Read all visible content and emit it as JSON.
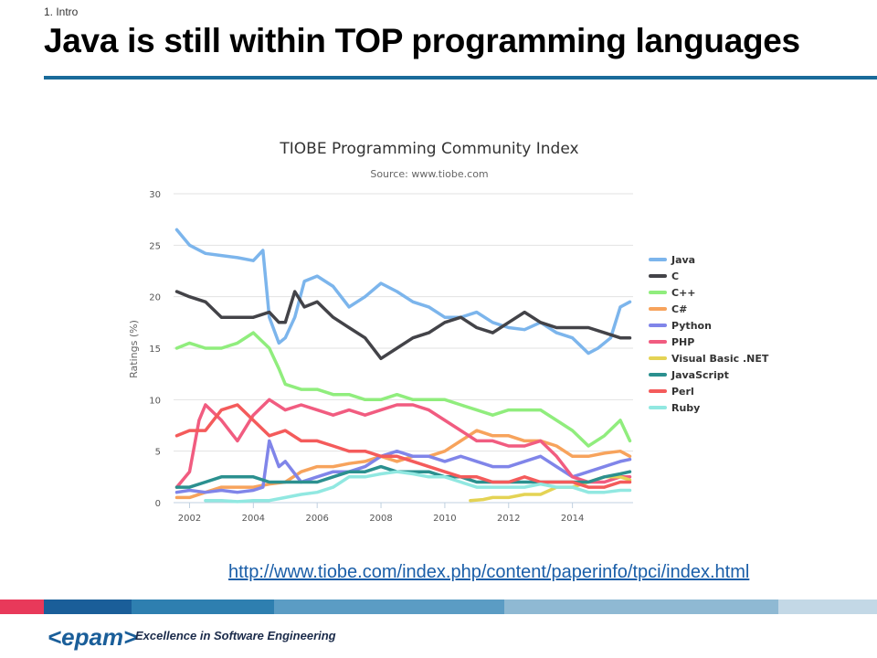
{
  "slide": {
    "section": "1. Intro",
    "title": "Java is still within TOP programming languages",
    "link": "http://www.tiobe.com/index.php/content/paperinfo/tpci/index.html",
    "footer_colors": [
      "#e8395a",
      "#1a5e99",
      "#2e7fb0",
      "#5b9cc4",
      "#8fb9d3",
      "#c3d8e6"
    ],
    "logo": "<epam>",
    "tagline": "Excellence in Software Engineering"
  },
  "chart_data": {
    "type": "line",
    "title": "TIOBE Programming Community Index",
    "subtitle": "Source: www.tiobe.com",
    "xlabel": "",
    "ylabel": "Ratings (%)",
    "xlim": [
      2001.5,
      2015.9
    ],
    "ylim": [
      0,
      30
    ],
    "x_ticks": [
      2002,
      2004,
      2006,
      2008,
      2010,
      2012,
      2014
    ],
    "y_ticks": [
      0,
      5,
      10,
      15,
      20,
      25,
      30
    ],
    "grid": true,
    "legend_position": "right",
    "series": [
      {
        "name": "Java",
        "color": "#7cb5ec",
        "points": [
          [
            2001.6,
            26.5
          ],
          [
            2002.0,
            25.0
          ],
          [
            2002.5,
            24.2
          ],
          [
            2003.0,
            24.0
          ],
          [
            2003.5,
            23.8
          ],
          [
            2004.0,
            23.5
          ],
          [
            2004.3,
            24.5
          ],
          [
            2004.5,
            18.0
          ],
          [
            2004.8,
            15.5
          ],
          [
            2005.0,
            16.0
          ],
          [
            2005.3,
            18.0
          ],
          [
            2005.6,
            21.5
          ],
          [
            2006.0,
            22.0
          ],
          [
            2006.5,
            21.0
          ],
          [
            2007.0,
            19.0
          ],
          [
            2007.5,
            20.0
          ],
          [
            2008.0,
            21.3
          ],
          [
            2008.5,
            20.5
          ],
          [
            2009.0,
            19.5
          ],
          [
            2009.5,
            19.0
          ],
          [
            2010.0,
            18.0
          ],
          [
            2010.5,
            18.0
          ],
          [
            2011.0,
            18.5
          ],
          [
            2011.5,
            17.5
          ],
          [
            2012.0,
            17.0
          ],
          [
            2012.5,
            16.8
          ],
          [
            2013.0,
            17.5
          ],
          [
            2013.5,
            16.5
          ],
          [
            2014.0,
            16.0
          ],
          [
            2014.5,
            14.5
          ],
          [
            2014.8,
            15.0
          ],
          [
            2015.2,
            16.0
          ],
          [
            2015.5,
            19.0
          ],
          [
            2015.8,
            19.5
          ]
        ]
      },
      {
        "name": "C",
        "color": "#434348",
        "points": [
          [
            2001.6,
            20.5
          ],
          [
            2002.0,
            20.0
          ],
          [
            2002.5,
            19.5
          ],
          [
            2003.0,
            18.0
          ],
          [
            2003.5,
            18.0
          ],
          [
            2004.0,
            18.0
          ],
          [
            2004.5,
            18.5
          ],
          [
            2004.8,
            17.5
          ],
          [
            2005.0,
            17.5
          ],
          [
            2005.3,
            20.5
          ],
          [
            2005.6,
            19.0
          ],
          [
            2006.0,
            19.5
          ],
          [
            2006.5,
            18.0
          ],
          [
            2007.0,
            17.0
          ],
          [
            2007.5,
            16.0
          ],
          [
            2008.0,
            14.0
          ],
          [
            2008.5,
            15.0
          ],
          [
            2009.0,
            16.0
          ],
          [
            2009.5,
            16.5
          ],
          [
            2010.0,
            17.5
          ],
          [
            2010.5,
            18.0
          ],
          [
            2011.0,
            17.0
          ],
          [
            2011.5,
            16.5
          ],
          [
            2012.0,
            17.5
          ],
          [
            2012.5,
            18.5
          ],
          [
            2013.0,
            17.5
          ],
          [
            2013.5,
            17.0
          ],
          [
            2014.0,
            17.0
          ],
          [
            2014.5,
            17.0
          ],
          [
            2015.0,
            16.5
          ],
          [
            2015.5,
            16.0
          ],
          [
            2015.8,
            16.0
          ]
        ]
      },
      {
        "name": "C++",
        "color": "#90ed7d",
        "points": [
          [
            2001.6,
            15.0
          ],
          [
            2002.0,
            15.5
          ],
          [
            2002.5,
            15.0
          ],
          [
            2003.0,
            15.0
          ],
          [
            2003.5,
            15.5
          ],
          [
            2004.0,
            16.5
          ],
          [
            2004.5,
            15.0
          ],
          [
            2004.8,
            13.0
          ],
          [
            2005.0,
            11.5
          ],
          [
            2005.5,
            11.0
          ],
          [
            2006.0,
            11.0
          ],
          [
            2006.5,
            10.5
          ],
          [
            2007.0,
            10.5
          ],
          [
            2007.5,
            10.0
          ],
          [
            2008.0,
            10.0
          ],
          [
            2008.5,
            10.5
          ],
          [
            2009.0,
            10.0
          ],
          [
            2009.5,
            10.0
          ],
          [
            2010.0,
            10.0
          ],
          [
            2010.5,
            9.5
          ],
          [
            2011.0,
            9.0
          ],
          [
            2011.5,
            8.5
          ],
          [
            2012.0,
            9.0
          ],
          [
            2012.5,
            9.0
          ],
          [
            2013.0,
            9.0
          ],
          [
            2013.5,
            8.0
          ],
          [
            2014.0,
            7.0
          ],
          [
            2014.5,
            5.5
          ],
          [
            2015.0,
            6.5
          ],
          [
            2015.5,
            8.0
          ],
          [
            2015.8,
            6.0
          ]
        ]
      },
      {
        "name": "C#",
        "color": "#f7a35c",
        "points": [
          [
            2001.6,
            0.5
          ],
          [
            2002.0,
            0.5
          ],
          [
            2002.5,
            1.0
          ],
          [
            2003.0,
            1.5
          ],
          [
            2003.5,
            1.5
          ],
          [
            2004.0,
            1.5
          ],
          [
            2004.5,
            1.8
          ],
          [
            2005.0,
            2.0
          ],
          [
            2005.5,
            3.0
          ],
          [
            2006.0,
            3.5
          ],
          [
            2006.5,
            3.5
          ],
          [
            2007.0,
            3.8
          ],
          [
            2007.5,
            4.0
          ],
          [
            2008.0,
            4.5
          ],
          [
            2008.5,
            4.0
          ],
          [
            2009.0,
            4.5
          ],
          [
            2009.5,
            4.5
          ],
          [
            2010.0,
            5.0
          ],
          [
            2010.5,
            6.0
          ],
          [
            2011.0,
            7.0
          ],
          [
            2011.5,
            6.5
          ],
          [
            2012.0,
            6.5
          ],
          [
            2012.5,
            6.0
          ],
          [
            2013.0,
            6.0
          ],
          [
            2013.5,
            5.5
          ],
          [
            2014.0,
            4.5
          ],
          [
            2014.5,
            4.5
          ],
          [
            2015.0,
            4.8
          ],
          [
            2015.5,
            5.0
          ],
          [
            2015.8,
            4.5
          ]
        ]
      },
      {
        "name": "Python",
        "color": "#8085e9",
        "points": [
          [
            2001.6,
            1.0
          ],
          [
            2002.0,
            1.2
          ],
          [
            2002.5,
            1.0
          ],
          [
            2003.0,
            1.2
          ],
          [
            2003.5,
            1.0
          ],
          [
            2004.0,
            1.2
          ],
          [
            2004.3,
            1.5
          ],
          [
            2004.5,
            6.0
          ],
          [
            2004.8,
            3.5
          ],
          [
            2005.0,
            4.0
          ],
          [
            2005.5,
            2.0
          ],
          [
            2006.0,
            2.5
          ],
          [
            2006.5,
            3.0
          ],
          [
            2007.0,
            3.0
          ],
          [
            2007.5,
            3.5
          ],
          [
            2008.0,
            4.5
          ],
          [
            2008.5,
            5.0
          ],
          [
            2009.0,
            4.5
          ],
          [
            2009.5,
            4.5
          ],
          [
            2010.0,
            4.0
          ],
          [
            2010.5,
            4.5
          ],
          [
            2011.0,
            4.0
          ],
          [
            2011.5,
            3.5
          ],
          [
            2012.0,
            3.5
          ],
          [
            2012.5,
            4.0
          ],
          [
            2013.0,
            4.5
          ],
          [
            2013.5,
            3.5
          ],
          [
            2014.0,
            2.5
          ],
          [
            2014.5,
            3.0
          ],
          [
            2015.0,
            3.5
          ],
          [
            2015.5,
            4.0
          ],
          [
            2015.8,
            4.2
          ]
        ]
      },
      {
        "name": "PHP",
        "color": "#f15c80",
        "points": [
          [
            2001.6,
            1.5
          ],
          [
            2002.0,
            3.0
          ],
          [
            2002.3,
            8.0
          ],
          [
            2002.5,
            9.5
          ],
          [
            2003.0,
            8.0
          ],
          [
            2003.5,
            6.0
          ],
          [
            2004.0,
            8.5
          ],
          [
            2004.5,
            10.0
          ],
          [
            2005.0,
            9.0
          ],
          [
            2005.5,
            9.5
          ],
          [
            2006.0,
            9.0
          ],
          [
            2006.5,
            8.5
          ],
          [
            2007.0,
            9.0
          ],
          [
            2007.5,
            8.5
          ],
          [
            2008.0,
            9.0
          ],
          [
            2008.5,
            9.5
          ],
          [
            2009.0,
            9.5
          ],
          [
            2009.5,
            9.0
          ],
          [
            2010.0,
            8.0
          ],
          [
            2010.5,
            7.0
          ],
          [
            2011.0,
            6.0
          ],
          [
            2011.5,
            6.0
          ],
          [
            2012.0,
            5.5
          ],
          [
            2012.5,
            5.5
          ],
          [
            2013.0,
            6.0
          ],
          [
            2013.5,
            4.5
          ],
          [
            2014.0,
            2.5
          ],
          [
            2014.5,
            2.0
          ],
          [
            2015.0,
            2.0
          ],
          [
            2015.5,
            2.5
          ],
          [
            2015.8,
            2.5
          ]
        ]
      },
      {
        "name": "Visual Basic .NET",
        "color": "#e4d354",
        "points": [
          [
            2010.8,
            0.2
          ],
          [
            2011.2,
            0.3
          ],
          [
            2011.5,
            0.5
          ],
          [
            2012.0,
            0.5
          ],
          [
            2012.5,
            0.8
          ],
          [
            2013.0,
            0.8
          ],
          [
            2013.5,
            1.5
          ],
          [
            2014.0,
            1.5
          ],
          [
            2014.5,
            2.0
          ],
          [
            2015.0,
            2.5
          ],
          [
            2015.5,
            2.5
          ],
          [
            2015.8,
            2.2
          ]
        ]
      },
      {
        "name": "JavaScript",
        "color": "#2b908f",
        "points": [
          [
            2001.6,
            1.5
          ],
          [
            2002.0,
            1.5
          ],
          [
            2002.5,
            2.0
          ],
          [
            2003.0,
            2.5
          ],
          [
            2003.5,
            2.5
          ],
          [
            2004.0,
            2.5
          ],
          [
            2004.5,
            2.0
          ],
          [
            2005.0,
            2.0
          ],
          [
            2005.5,
            2.0
          ],
          [
            2006.0,
            2.0
          ],
          [
            2006.5,
            2.5
          ],
          [
            2007.0,
            3.0
          ],
          [
            2007.5,
            3.0
          ],
          [
            2008.0,
            3.5
          ],
          [
            2008.5,
            3.0
          ],
          [
            2009.0,
            3.0
          ],
          [
            2009.5,
            3.0
          ],
          [
            2010.0,
            2.5
          ],
          [
            2010.5,
            2.5
          ],
          [
            2011.0,
            2.0
          ],
          [
            2011.5,
            2.0
          ],
          [
            2012.0,
            2.0
          ],
          [
            2012.5,
            2.0
          ],
          [
            2013.0,
            2.0
          ],
          [
            2013.5,
            2.0
          ],
          [
            2014.0,
            2.0
          ],
          [
            2014.5,
            2.0
          ],
          [
            2015.0,
            2.5
          ],
          [
            2015.5,
            2.8
          ],
          [
            2015.8,
            3.0
          ]
        ]
      },
      {
        "name": "Perl",
        "color": "#f45b5b",
        "points": [
          [
            2001.6,
            6.5
          ],
          [
            2002.0,
            7.0
          ],
          [
            2002.5,
            7.0
          ],
          [
            2003.0,
            9.0
          ],
          [
            2003.5,
            9.5
          ],
          [
            2004.0,
            8.0
          ],
          [
            2004.5,
            6.5
          ],
          [
            2005.0,
            7.0
          ],
          [
            2005.5,
            6.0
          ],
          [
            2006.0,
            6.0
          ],
          [
            2006.5,
            5.5
          ],
          [
            2007.0,
            5.0
          ],
          [
            2007.5,
            5.0
          ],
          [
            2008.0,
            4.5
          ],
          [
            2008.5,
            4.5
          ],
          [
            2009.0,
            4.0
          ],
          [
            2009.5,
            3.5
          ],
          [
            2010.0,
            3.0
          ],
          [
            2010.5,
            2.5
          ],
          [
            2011.0,
            2.5
          ],
          [
            2011.5,
            2.0
          ],
          [
            2012.0,
            2.0
          ],
          [
            2012.5,
            2.5
          ],
          [
            2013.0,
            2.0
          ],
          [
            2013.5,
            2.0
          ],
          [
            2014.0,
            2.0
          ],
          [
            2014.5,
            1.5
          ],
          [
            2015.0,
            1.5
          ],
          [
            2015.5,
            2.0
          ],
          [
            2015.8,
            2.0
          ]
        ]
      },
      {
        "name": "Ruby",
        "color": "#91e8e1",
        "points": [
          [
            2002.5,
            0.2
          ],
          [
            2003.0,
            0.2
          ],
          [
            2003.5,
            0.1
          ],
          [
            2004.0,
            0.2
          ],
          [
            2004.5,
            0.2
          ],
          [
            2005.0,
            0.5
          ],
          [
            2005.5,
            0.8
          ],
          [
            2006.0,
            1.0
          ],
          [
            2006.5,
            1.5
          ],
          [
            2007.0,
            2.5
          ],
          [
            2007.5,
            2.5
          ],
          [
            2008.0,
            2.8
          ],
          [
            2008.5,
            3.0
          ],
          [
            2009.0,
            2.8
          ],
          [
            2009.5,
            2.5
          ],
          [
            2010.0,
            2.5
          ],
          [
            2010.5,
            2.0
          ],
          [
            2011.0,
            1.5
          ],
          [
            2011.5,
            1.5
          ],
          [
            2012.0,
            1.5
          ],
          [
            2012.5,
            1.5
          ],
          [
            2013.0,
            1.8
          ],
          [
            2013.5,
            1.5
          ],
          [
            2014.0,
            1.5
          ],
          [
            2014.5,
            1.0
          ],
          [
            2015.0,
            1.0
          ],
          [
            2015.5,
            1.2
          ],
          [
            2015.8,
            1.2
          ]
        ]
      }
    ]
  }
}
